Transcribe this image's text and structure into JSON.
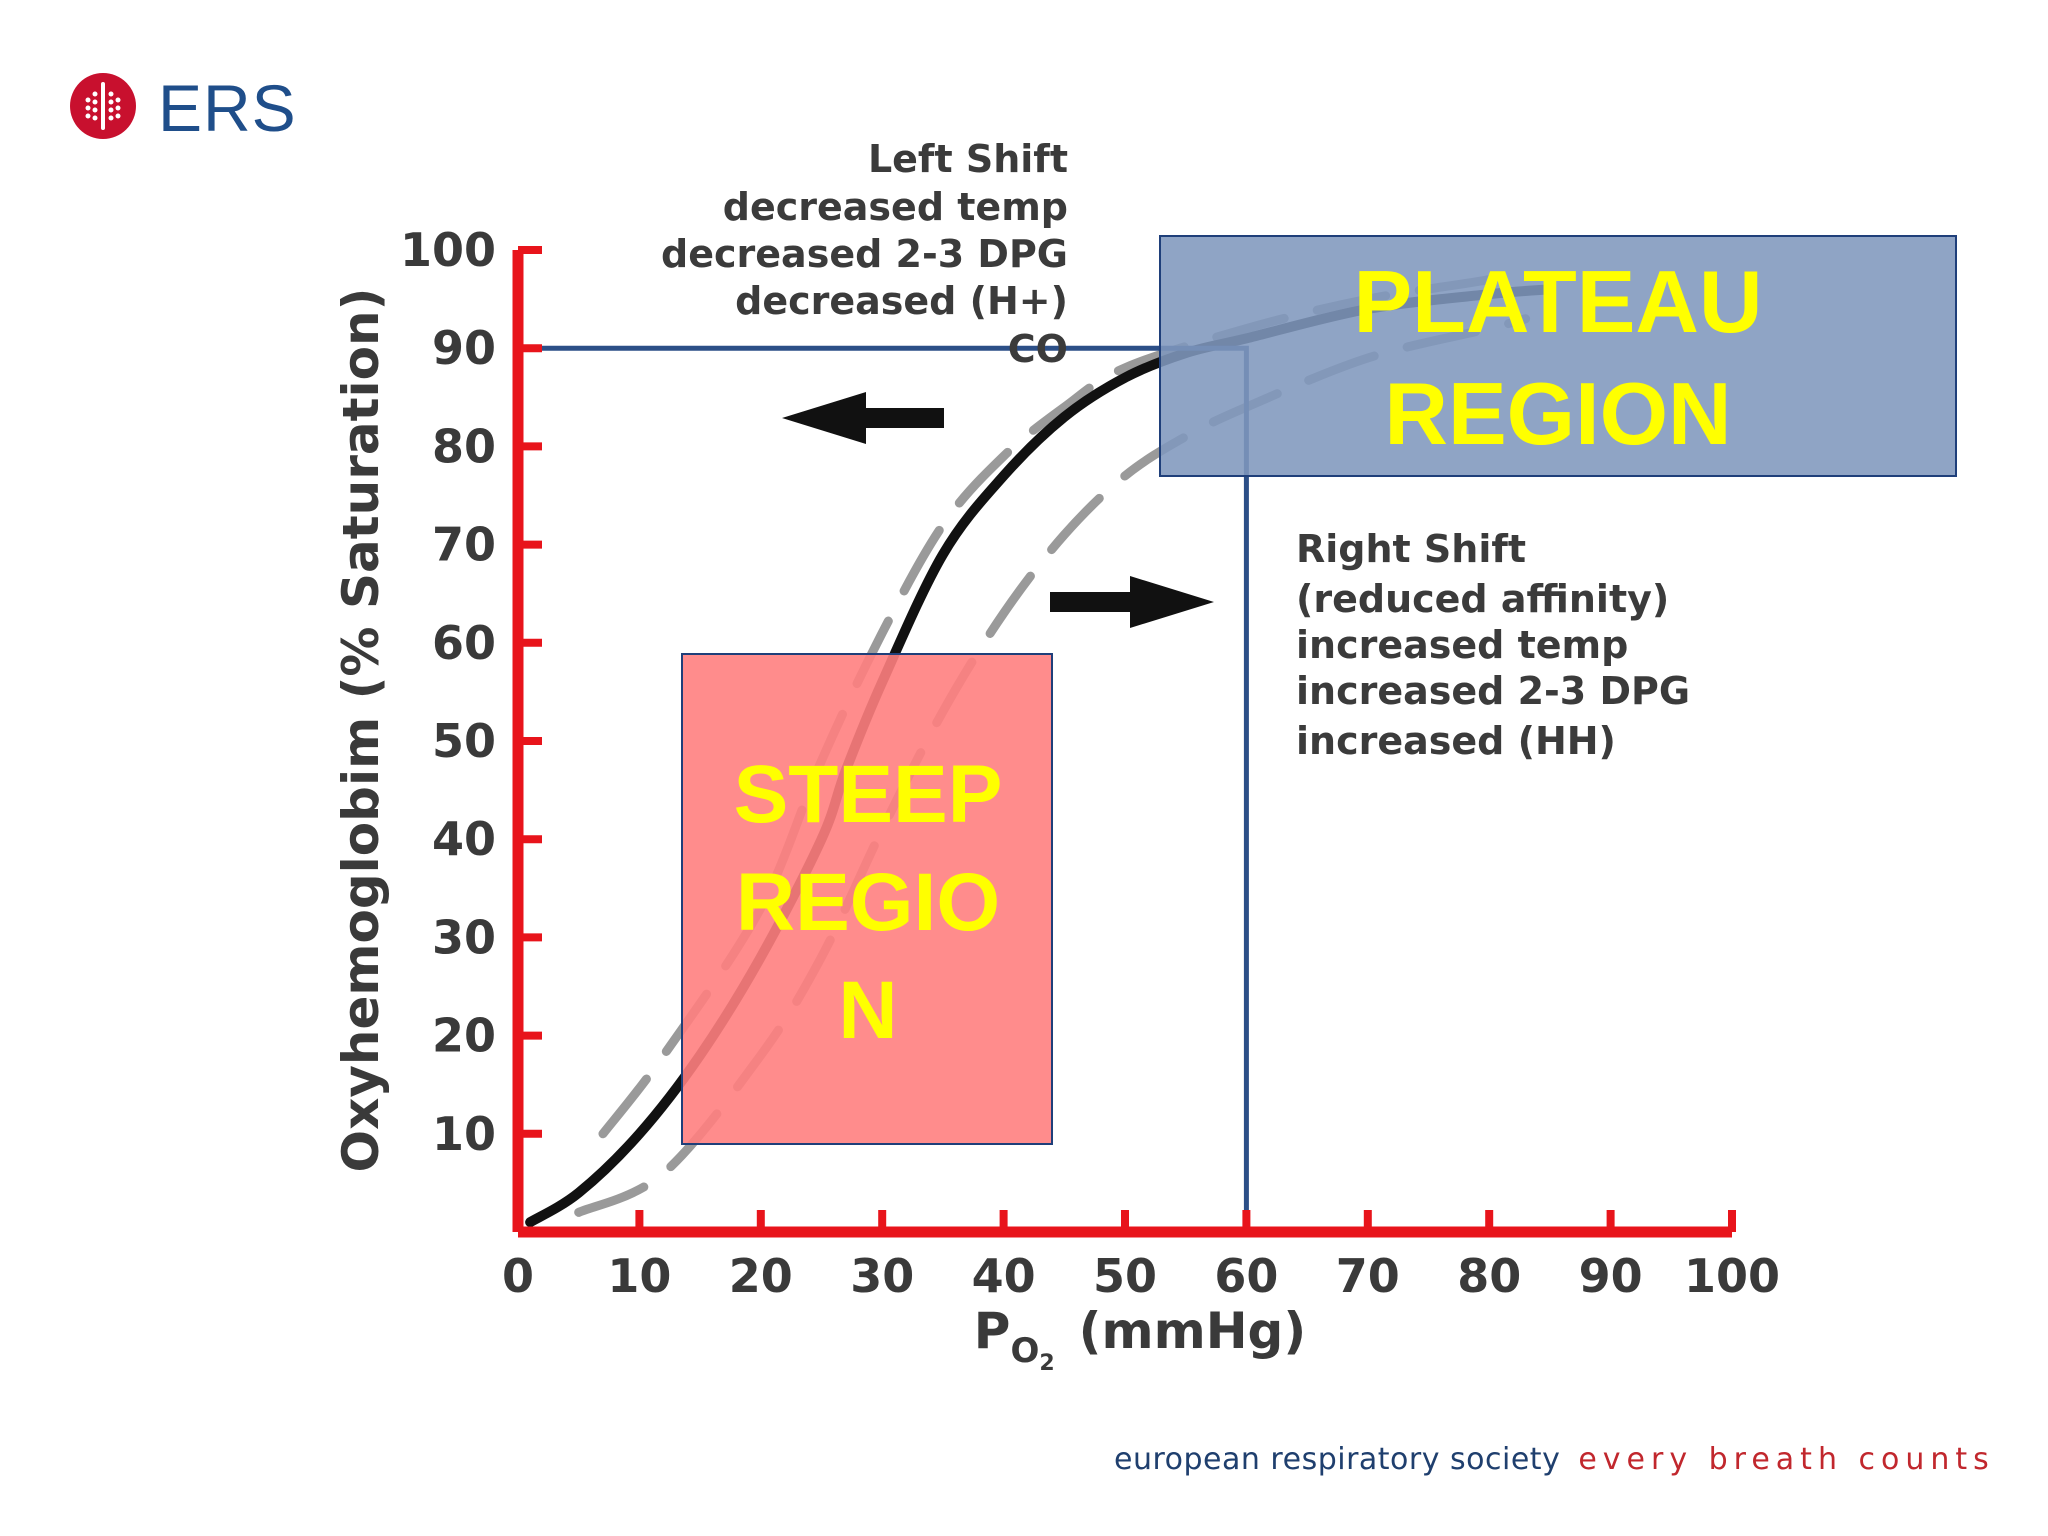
{
  "logo": {
    "text": "ERS"
  },
  "chart_data": {
    "type": "line",
    "title": "",
    "xlabel": "PO2 (mmHg)",
    "xlabel_main": "P",
    "xlabel_sub": "O",
    "xlabel_sub2": "2",
    "xlabel_unit": "(mmHg)",
    "ylabel": "Oxyhemoglobim (% Saturation)",
    "xlim": [
      0,
      100
    ],
    "ylim": [
      0,
      100
    ],
    "x_ticks": [
      0,
      10,
      20,
      30,
      40,
      50,
      60,
      70,
      80,
      90,
      100
    ],
    "y_ticks": [
      10,
      20,
      30,
      40,
      50,
      60,
      70,
      80,
      90,
      100
    ],
    "x_tick_labels": [
      "0",
      "10",
      "20",
      "30",
      "40",
      "50",
      "60",
      "70",
      "80",
      "90",
      "100"
    ],
    "y_tick_labels": [
      "10",
      "20",
      "30",
      "40",
      "50",
      "60",
      "70",
      "80",
      "90",
      "100"
    ],
    "series": [
      {
        "style": "solid",
        "color": "#111111",
        "x": [
          1,
          5,
          10,
          15,
          20,
          25,
          27,
          30,
          35,
          40,
          45,
          50,
          55,
          60,
          70,
          80,
          85
        ],
        "y": [
          1,
          4,
          10,
          18,
          28,
          40,
          47,
          56,
          69,
          77,
          83,
          87,
          89.5,
          91,
          94,
          95.5,
          96
        ]
      },
      {
        "style": "dashed",
        "color": "#9a9a9a",
        "x": [
          7,
          12,
          20,
          25,
          30,
          35,
          40,
          45,
          50,
          60,
          70,
          80,
          82
        ],
        "y": [
          10,
          18,
          33,
          48,
          61,
          72,
          79,
          84,
          88,
          92,
          95,
          97,
          98
        ]
      },
      {
        "style": "dashed",
        "color": "#9a9a9a",
        "x": [
          5,
          12,
          20,
          25,
          30,
          35,
          40,
          45,
          50,
          55,
          60,
          70,
          80,
          83
        ],
        "y": [
          2,
          6,
          18,
          28,
          41,
          53,
          63,
          71,
          77,
          81,
          84,
          89,
          92,
          93
        ]
      }
    ],
    "reference_lines": {
      "x": 60,
      "y": 90,
      "color": "#2c4f87"
    },
    "annotations": {
      "left_shift": [
        "Left Shift",
        "decreased temp",
        "decreased 2-3 DPG",
        "decreased (H+)",
        "CO"
      ],
      "right_shift": [
        "Right Shift",
        "(reduced affinity)",
        "increased temp",
        "increased 2-3 DPG",
        "increased (HH)"
      ]
    },
    "regions": {
      "steep": {
        "lines": [
          "STEEP",
          "REGIO",
          "N"
        ],
        "color": "#ff7f7f"
      },
      "plateau": {
        "lines": [
          "PLATEAU",
          "REGION"
        ],
        "color": "#8097bd"
      }
    },
    "axis_color": "#e8141b",
    "grid": false
  },
  "footer": {
    "org": "european respiratory society",
    "tagline": "every breath counts"
  }
}
